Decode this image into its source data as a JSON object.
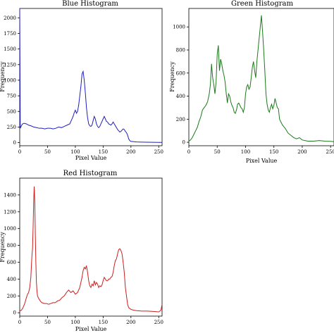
{
  "chart_data": [
    {
      "type": "line",
      "title": "Blue Histogram",
      "xlabel": "Pixel Value",
      "ylabel": "Frequency",
      "color": "#1f1fbf",
      "xlim": [
        0,
        256
      ],
      "ylim": [
        -50,
        2150
      ],
      "xticks": [
        0,
        50,
        100,
        150,
        200,
        250
      ],
      "yticks": [
        0,
        250,
        500,
        750,
        1000,
        1250,
        1500,
        1750,
        2000
      ],
      "series": [
        {
          "x": [
            0,
            1,
            2,
            3,
            5,
            8,
            12,
            16,
            20,
            25,
            30,
            35,
            40,
            45,
            50,
            55,
            60,
            65,
            70,
            75,
            80,
            85,
            90,
            93,
            96,
            98,
            100,
            102,
            104,
            106,
            108,
            110,
            112,
            114,
            116,
            118,
            120,
            122,
            124,
            126,
            128,
            130,
            132,
            134,
            136,
            138,
            140,
            142,
            144,
            146,
            148,
            150,
            152,
            154,
            156,
            158,
            160,
            162,
            164,
            166,
            168,
            170,
            172,
            174,
            176,
            178,
            180,
            182,
            184,
            186,
            188,
            190,
            192,
            194,
            196,
            198,
            200,
            205,
            210,
            220,
            230,
            240,
            250,
            256
          ],
          "y": [
            2150,
            230,
            250,
            270,
            300,
            310,
            300,
            280,
            270,
            250,
            240,
            230,
            230,
            220,
            230,
            230,
            220,
            230,
            250,
            240,
            260,
            280,
            300,
            360,
            420,
            480,
            520,
            470,
            500,
            600,
            750,
            900,
            1100,
            1140,
            1000,
            800,
            560,
            400,
            300,
            270,
            260,
            280,
            350,
            420,
            380,
            300,
            260,
            240,
            260,
            300,
            340,
            380,
            420,
            380,
            340,
            330,
            300,
            290,
            280,
            300,
            330,
            300,
            270,
            240,
            210,
            190,
            170,
            180,
            200,
            220,
            210,
            180,
            160,
            120,
            60,
            30,
            20,
            15,
            10,
            8,
            6,
            5,
            4,
            3
          ]
        }
      ]
    },
    {
      "type": "line",
      "title": "Green Histogram",
      "xlabel": "Pixel Value",
      "ylabel": "Frequency",
      "color": "#1a7a1a",
      "xlim": [
        0,
        256
      ],
      "ylim": [
        -30,
        1160
      ],
      "xticks": [
        0,
        50,
        100,
        150,
        200,
        250
      ],
      "yticks": [
        0,
        200,
        400,
        600,
        800,
        1000
      ],
      "series": [
        {
          "x": [
            0,
            3,
            6,
            9,
            12,
            15,
            18,
            21,
            24,
            27,
            30,
            33,
            36,
            38,
            40,
            42,
            44,
            46,
            48,
            50,
            52,
            54,
            56,
            58,
            60,
            62,
            64,
            66,
            68,
            70,
            72,
            74,
            76,
            78,
            80,
            82,
            84,
            86,
            88,
            90,
            92,
            94,
            96,
            98,
            100,
            102,
            104,
            106,
            108,
            110,
            112,
            114,
            116,
            118,
            120,
            122,
            124,
            126,
            128,
            130,
            132,
            134,
            136,
            138,
            140,
            142,
            144,
            146,
            148,
            150,
            152,
            154,
            156,
            158,
            160,
            165,
            170,
            175,
            180,
            185,
            190,
            195,
            200,
            210,
            220,
            230,
            240,
            250,
            256
          ],
          "y": [
            10,
            20,
            40,
            70,
            100,
            130,
            180,
            220,
            280,
            300,
            320,
            350,
            420,
            500,
            680,
            560,
            500,
            420,
            520,
            760,
            840,
            620,
            720,
            680,
            620,
            580,
            520,
            420,
            340,
            420,
            400,
            350,
            320,
            300,
            260,
            250,
            280,
            330,
            340,
            320,
            300,
            290,
            260,
            300,
            420,
            480,
            500,
            460,
            480,
            560,
            650,
            700,
            620,
            560,
            700,
            800,
            900,
            1000,
            1100,
            960,
            800,
            620,
            420,
            330,
            280,
            260,
            300,
            330,
            290,
            320,
            380,
            340,
            300,
            290,
            200,
            150,
            120,
            80,
            60,
            40,
            30,
            40,
            20,
            10,
            10,
            15,
            10,
            8,
            5
          ]
        }
      ]
    },
    {
      "type": "line",
      "title": "Red Histogram",
      "xlabel": "Pixel Value",
      "ylabel": "Frequency",
      "color": "#cc1f1f",
      "xlim": [
        0,
        256
      ],
      "ylim": [
        -40,
        1600
      ],
      "xticks": [
        0,
        50,
        100,
        150,
        200,
        250
      ],
      "yticks": [
        0,
        200,
        400,
        600,
        800,
        1000,
        1200,
        1400
      ],
      "series": [
        {
          "x": [
            0,
            3,
            6,
            9,
            12,
            14,
            16,
            18,
            20,
            21,
            22,
            23,
            24,
            25,
            26,
            27,
            28,
            29,
            30,
            31,
            32,
            34,
            36,
            38,
            40,
            44,
            48,
            52,
            56,
            60,
            64,
            68,
            72,
            76,
            80,
            84,
            88,
            92,
            96,
            100,
            104,
            108,
            112,
            114,
            116,
            118,
            120,
            122,
            124,
            126,
            128,
            130,
            132,
            134,
            136,
            138,
            140,
            142,
            144,
            146,
            148,
            150,
            152,
            154,
            156,
            158,
            160,
            162,
            164,
            166,
            168,
            170,
            172,
            174,
            176,
            178,
            180,
            182,
            184,
            186,
            188,
            190,
            192,
            194,
            196,
            200,
            205,
            210,
            220,
            230,
            240,
            250,
            254,
            256
          ],
          "y": [
            20,
            30,
            60,
            110,
            180,
            220,
            240,
            300,
            420,
            560,
            680,
            760,
            1000,
            1300,
            1500,
            1350,
            950,
            600,
            360,
            260,
            200,
            170,
            150,
            130,
            120,
            110,
            110,
            100,
            110,
            120,
            120,
            140,
            150,
            180,
            200,
            240,
            270,
            240,
            260,
            220,
            240,
            300,
            420,
            500,
            540,
            520,
            560,
            480,
            380,
            320,
            300,
            340,
            320,
            380,
            330,
            360,
            340,
            300,
            320,
            310,
            330,
            380,
            420,
            400,
            380,
            380,
            400,
            400,
            420,
            430,
            480,
            560,
            620,
            640,
            700,
            750,
            760,
            740,
            700,
            600,
            480,
            300,
            200,
            100,
            60,
            40,
            30,
            25,
            20,
            20,
            15,
            10,
            30,
            100
          ]
        }
      ]
    }
  ]
}
